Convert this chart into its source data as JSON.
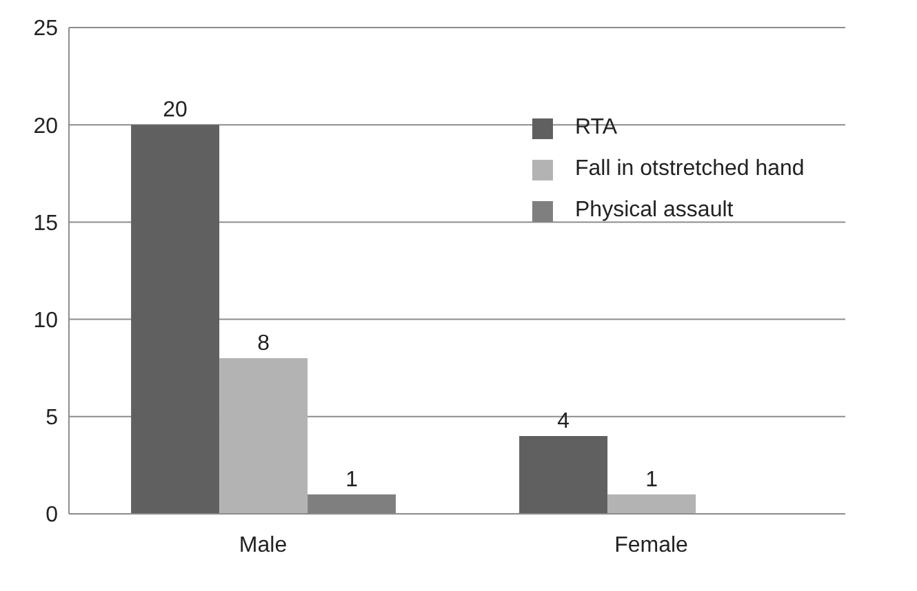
{
  "chart_data": {
    "type": "bar",
    "categories": [
      "Male",
      "Female"
    ],
    "series": [
      {
        "name": "RTA",
        "color": "#606060",
        "values": [
          20,
          4
        ]
      },
      {
        "name": "Fall in otstretched hand",
        "color": "#b3b3b3",
        "values": [
          8,
          1
        ]
      },
      {
        "name": "Physical assault",
        "color": "#7f7f7f",
        "values": [
          1,
          null
        ]
      }
    ],
    "ylim": [
      0,
      25
    ],
    "yticks": [
      0,
      5,
      10,
      15,
      20,
      25
    ],
    "grid": "y",
    "legend": "top right",
    "data_labels": true
  }
}
